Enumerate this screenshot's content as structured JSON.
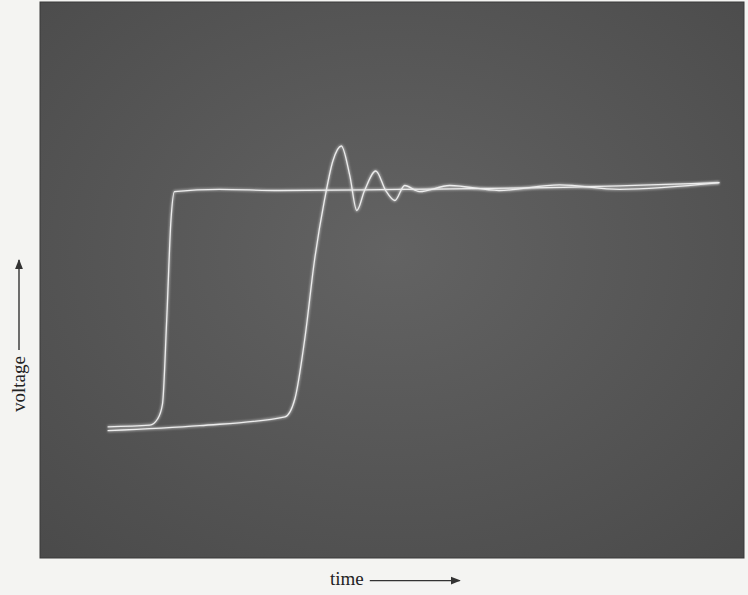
{
  "chart_data": {
    "type": "line",
    "xlabel": "time",
    "ylabel": "voltage",
    "xlim": [
      0,
      100
    ],
    "ylim": [
      0,
      100
    ],
    "tick_labels": false,
    "series": [
      {
        "color": "#ececec",
        "x": [
          9.6,
          15.6,
          16.7,
          17.4,
          18.0,
          18.6,
          19.1,
          25.5,
          34.0,
          51.1,
          72.3,
          96.5
        ],
        "values": [
          23.6,
          23.9,
          25.0,
          27.7,
          42.9,
          60.7,
          65.9,
          66.3,
          66.1,
          66.3,
          66.6,
          67.5
        ]
      },
      {
        "color": "#ececec",
        "x": [
          9.6,
          22.7,
          34.8,
          36.2,
          37.6,
          39.0,
          40.4,
          41.6,
          42.8,
          44.0,
          45.0,
          46.1,
          47.7,
          49.1,
          50.4,
          51.8,
          53.9,
          58.2,
          65.2,
          73.8,
          82.3,
          96.5
        ],
        "values": [
          22.9,
          23.8,
          25.4,
          28.6,
          39.3,
          53.6,
          64.3,
          71.4,
          74.1,
          68.8,
          62.5,
          66.1,
          69.6,
          66.1,
          64.3,
          67.0,
          65.9,
          67.0,
          66.1,
          67.1,
          66.3,
          67.5
        ]
      }
    ]
  }
}
